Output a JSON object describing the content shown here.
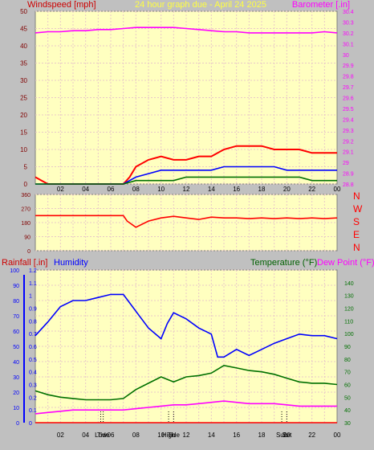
{
  "colors": {
    "panel_bg": "#c0c0c0",
    "plot_bg": "#ffffc0",
    "grid": "#e8c8c8",
    "red": "#ff0000",
    "blue": "#0000ff",
    "green": "#007000",
    "magenta": "#ff00ff",
    "title_yellow": "#ffff40",
    "dark_red": "#800000"
  },
  "header": {
    "left_title": "Windspeed [mph]",
    "center_title": "24 hour graph due - April 24 2025",
    "right_title": "Barometer [.in]"
  },
  "middle": {
    "compass": [
      "N",
      "W",
      "S",
      "E",
      "N"
    ]
  },
  "bottom_header": {
    "rainfall": "Rainfall [.in]",
    "humidity": "Humidity",
    "temperature": "Temperature (°F)",
    "dewpoint": "Dew Point (°F)"
  },
  "x_axis": {
    "ticks": [
      "02",
      "04",
      "06",
      "08",
      "10",
      "12",
      "14",
      "16",
      "18",
      "20",
      "22",
      "00"
    ]
  },
  "bottom_markers": [
    {
      "label": "Low",
      "hour": 5.2
    },
    {
      "label": "Tide",
      "hour": 5.4
    },
    {
      "label": "High",
      "hour": 10.6
    },
    {
      "label": "Tide",
      "hour": 11.0
    },
    {
      "label": "Sun",
      "hour": 19.6
    },
    {
      "label": "Set",
      "hour": 20.0
    }
  ],
  "chart_data": [
    {
      "type": "line",
      "name": "wind_barometer",
      "x_range_hours": [
        0,
        24
      ],
      "left_axis": {
        "title": "Windspeed [mph]",
        "ylim": [
          0,
          50
        ],
        "ticks": [
          0,
          5,
          10,
          15,
          20,
          25,
          30,
          35,
          40,
          45,
          50
        ]
      },
      "right_axis": {
        "title": "Barometer [.in]",
        "ylim": [
          28.8,
          30.4
        ],
        "ticks": [
          "28.8",
          "28.9",
          "29",
          "29.1",
          "29.2",
          "29.3",
          "29.4",
          "29.5",
          "29.6",
          "29.7",
          "29.8",
          "29.9",
          "30",
          "30.1",
          "30.2",
          "30.3",
          "30.4"
        ]
      },
      "series": [
        {
          "name": "Barometer",
          "axis": "right",
          "x": [
            0,
            1,
            2,
            3,
            4,
            5,
            6,
            7,
            8,
            9,
            10,
            11,
            12,
            13,
            14,
            15,
            16,
            17,
            18,
            19,
            20,
            21,
            22,
            23,
            24
          ],
          "y": [
            30.2,
            30.21,
            30.21,
            30.22,
            30.22,
            30.23,
            30.23,
            30.24,
            30.25,
            30.25,
            30.25,
            30.25,
            30.24,
            30.23,
            30.22,
            30.21,
            30.21,
            30.2,
            30.2,
            30.2,
            30.2,
            30.2,
            30.2,
            30.21,
            30.2
          ]
        },
        {
          "name": "Wind gust",
          "axis": "left",
          "x": [
            0,
            0.5,
            1,
            7,
            7.5,
            8,
            9,
            10,
            11,
            12,
            13,
            14,
            15,
            16,
            17,
            18,
            19,
            20,
            21,
            22,
            23,
            24
          ],
          "y": [
            2,
            1,
            0,
            0,
            2,
            5,
            7,
            8,
            7,
            7,
            8,
            8,
            10,
            11,
            11,
            11,
            10,
            10,
            10,
            9,
            9,
            9
          ]
        },
        {
          "name": "Wind average",
          "axis": "left",
          "x": [
            0,
            7,
            8,
            9,
            10,
            11,
            12,
            13,
            14,
            15,
            16,
            17,
            18,
            19,
            20,
            21,
            22,
            23,
            24
          ],
          "y": [
            0,
            0,
            2,
            3,
            4,
            4,
            4,
            4,
            4,
            5,
            5,
            5,
            5,
            5,
            4,
            4,
            4,
            4,
            4
          ]
        },
        {
          "name": "Wind low",
          "axis": "left",
          "x": [
            0,
            7,
            8,
            9,
            10,
            11,
            12,
            13,
            14,
            15,
            16,
            17,
            18,
            19,
            20,
            21,
            22,
            23,
            24
          ],
          "y": [
            0,
            0,
            1,
            1,
            1,
            1,
            2,
            2,
            2,
            2,
            2,
            2,
            2,
            2,
            2,
            2,
            1,
            1,
            1
          ]
        }
      ]
    },
    {
      "type": "line",
      "name": "wind_direction",
      "x_range_hours": [
        0,
        24
      ],
      "left_axis": {
        "ylim": [
          0,
          360
        ],
        "ticks": [
          0,
          90,
          180,
          270,
          360
        ]
      },
      "series": [
        {
          "name": "Wind direction",
          "x": [
            0,
            7,
            7.3,
            8,
            9,
            10,
            11,
            12,
            13,
            14,
            15,
            16,
            17,
            18,
            19,
            20,
            21,
            22,
            23,
            24
          ],
          "y": [
            225,
            225,
            190,
            150,
            190,
            210,
            220,
            210,
            200,
            215,
            210,
            210,
            205,
            210,
            205,
            210,
            205,
            210,
            205,
            210
          ]
        }
      ]
    },
    {
      "type": "line",
      "name": "humidity_temperature",
      "x_range_hours": [
        0,
        24
      ],
      "rain_axis": {
        "title": "Rainfall [.in]",
        "ylim": [
          0,
          1.2
        ],
        "ticks": [
          "0",
          "0.1",
          "0.2",
          "0.3",
          "0.4",
          "0.5",
          "0.6",
          "0.7",
          "0.8",
          "0.9",
          "1",
          "1.1",
          "1.2"
        ]
      },
      "humidity_axis": {
        "title": "Humidity",
        "ylim": [
          0,
          100
        ],
        "ticks": [
          0,
          10,
          20,
          30,
          40,
          50,
          60,
          70,
          80,
          90,
          100
        ]
      },
      "temperature_axis": {
        "title": "Temperature (°F)",
        "ylim": [
          30,
          150
        ],
        "ticks": [
          30,
          40,
          50,
          60,
          70,
          80,
          90,
          100,
          110,
          120,
          130,
          140
        ]
      },
      "series": [
        {
          "name": "Humidity",
          "axis": "humidity",
          "x": [
            0,
            1,
            2,
            3,
            4,
            5,
            6,
            7,
            8,
            9,
            10,
            10.5,
            11,
            12,
            13,
            14,
            14.5,
            15,
            16,
            17,
            18,
            19,
            20,
            21,
            22,
            23,
            24
          ],
          "y": [
            57,
            66,
            76,
            80,
            80,
            82,
            84,
            84,
            73,
            62,
            55,
            65,
            72,
            68,
            62,
            58,
            43,
            43,
            48,
            44,
            48,
            52,
            55,
            58,
            57,
            57,
            55
          ]
        },
        {
          "name": "Temperature",
          "axis": "temperature",
          "x": [
            0,
            1,
            2,
            3,
            4,
            5,
            6,
            7,
            8,
            9,
            10,
            11,
            12,
            13,
            14,
            15,
            16,
            17,
            18,
            19,
            20,
            21,
            22,
            23,
            24
          ],
          "y": [
            55,
            52,
            50,
            49,
            48,
            48,
            48,
            49,
            56,
            61,
            66,
            62,
            66,
            67,
            69,
            75,
            73,
            71,
            70,
            68,
            65,
            62,
            61,
            61,
            60
          ]
        },
        {
          "name": "Dew Point",
          "axis": "temperature",
          "x": [
            0,
            1,
            2,
            3,
            4,
            5,
            6,
            7,
            8,
            9,
            10,
            11,
            12,
            13,
            14,
            15,
            16,
            17,
            18,
            19,
            20,
            21,
            22,
            23,
            24
          ],
          "y": [
            37,
            38,
            39,
            40,
            40,
            40,
            40,
            40,
            41,
            42,
            43,
            44,
            44,
            45,
            46,
            47,
            46,
            45,
            45,
            45,
            44,
            43,
            43,
            43,
            43
          ]
        },
        {
          "name": "Rainfall",
          "axis": "rain",
          "x": [
            0,
            24
          ],
          "y": [
            0,
            0
          ]
        }
      ]
    }
  ]
}
